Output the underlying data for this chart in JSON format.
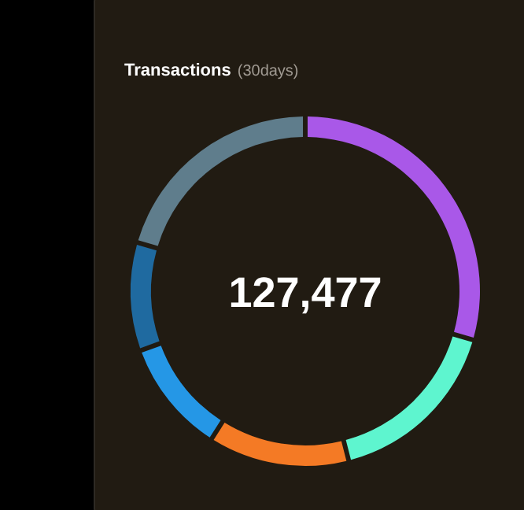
{
  "chart_data": {
    "type": "donut",
    "title": "Transactions",
    "subtitle": "(30days)",
    "categories": [
      null,
      null,
      null,
      null,
      null,
      null
    ],
    "values": [
      29.5,
      16.5,
      13,
      10.5,
      10,
      20.5
    ],
    "colors": [
      "#a958e8",
      "#5ef5cf",
      "#f47a25",
      "#2597e6",
      "#1f6aa0",
      "#5f7d8c"
    ],
    "annotations": [
      "127,477"
    ],
    "legend": false
  }
}
